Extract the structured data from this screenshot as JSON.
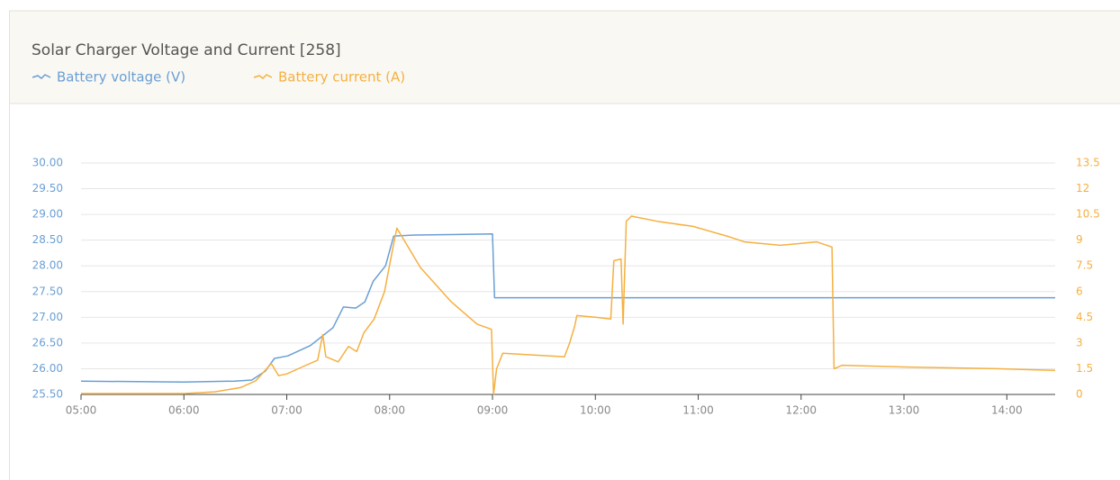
{
  "chart_data": {
    "type": "line",
    "title": "Solar Charger Voltage and Current [258]",
    "xlim": [
      5,
      14.47
    ],
    "xticks": [
      {
        "value": 5,
        "label": "05:00"
      },
      {
        "value": 6,
        "label": "06:00"
      },
      {
        "value": 7,
        "label": "07:00"
      },
      {
        "value": 8,
        "label": "08:00"
      },
      {
        "value": 9,
        "label": "09:00"
      },
      {
        "value": 10,
        "label": "10:00"
      },
      {
        "value": 11,
        "label": "11:00"
      },
      {
        "value": 12,
        "label": "12:00"
      },
      {
        "value": 13,
        "label": "13:00"
      },
      {
        "value": 14,
        "label": "14:00"
      }
    ],
    "ylim": [
      25.5,
      30
    ],
    "yticks": [
      {
        "value": 25.5,
        "label": "25.50"
      },
      {
        "value": 26,
        "label": "26.00"
      },
      {
        "value": 26.5,
        "label": "26.50"
      },
      {
        "value": 27,
        "label": "27.00"
      },
      {
        "value": 27.5,
        "label": "27.50"
      },
      {
        "value": 28,
        "label": "28.00"
      },
      {
        "value": 28.5,
        "label": "28.50"
      },
      {
        "value": 29,
        "label": "29.00"
      },
      {
        "value": 29.5,
        "label": "29.50"
      },
      {
        "value": 30,
        "label": "30.00"
      }
    ],
    "y2lim": [
      0,
      13.5
    ],
    "y2ticks": [
      0,
      1.5,
      3,
      4.5,
      6,
      7.5,
      9,
      10.5,
      12,
      13.5
    ],
    "grid": true,
    "series": [
      {
        "name": "Battery voltage (V)",
        "color": "#6a9fd4",
        "axis": "y",
        "x": [
          5.0,
          6.0,
          6.49,
          6.66,
          6.79,
          6.88,
          7.01,
          7.23,
          7.45,
          7.55,
          7.67,
          7.76,
          7.84,
          7.96,
          8.04,
          8.24,
          9.0,
          9.02,
          11.21,
          14.47
        ],
        "values": [
          25.76,
          25.74,
          25.76,
          25.78,
          25.95,
          26.2,
          26.25,
          26.45,
          26.8,
          27.2,
          27.18,
          27.3,
          27.7,
          28.0,
          28.58,
          28.6,
          28.62,
          27.38,
          27.38,
          27.38
        ]
      },
      {
        "name": "Battery current (A)",
        "color": "#f5b041",
        "axis": "y2",
        "x": [
          5.0,
          6.0,
          6.3,
          6.55,
          6.7,
          6.82,
          6.85,
          6.92,
          7.0,
          7.15,
          7.3,
          7.35,
          7.38,
          7.5,
          7.6,
          7.68,
          7.75,
          7.85,
          7.95,
          8.03,
          8.07,
          8.3,
          8.6,
          8.85,
          8.99,
          9.01,
          9.04,
          9.1,
          9.4,
          9.7,
          9.75,
          9.8,
          9.82,
          10.0,
          10.15,
          10.18,
          10.25,
          10.27,
          10.3,
          10.35,
          10.6,
          10.95,
          11.3,
          11.45,
          11.8,
          12.15,
          12.3,
          12.32,
          12.4,
          13.0,
          13.9,
          14.47
        ],
        "values": [
          0.05,
          0.05,
          0.15,
          0.4,
          0.8,
          1.6,
          1.8,
          1.1,
          1.2,
          1.6,
          2.0,
          3.5,
          2.2,
          1.9,
          2.8,
          2.5,
          3.6,
          4.4,
          6.0,
          8.5,
          9.7,
          7.4,
          5.4,
          4.1,
          3.8,
          0,
          1.5,
          2.4,
          2.3,
          2.2,
          3.0,
          4.0,
          4.6,
          4.5,
          4.4,
          7.8,
          7.9,
          4.1,
          10.1,
          10.4,
          10.1,
          9.8,
          9.2,
          8.9,
          8.7,
          8.9,
          8.6,
          1.5,
          1.7,
          1.6,
          1.5,
          1.4
        ]
      }
    ]
  }
}
